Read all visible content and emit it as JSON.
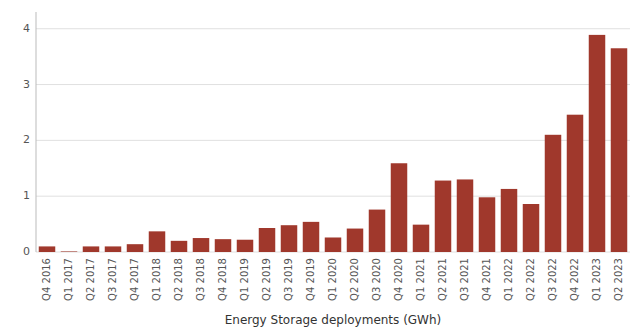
{
  "chart_data": {
    "type": "bar",
    "xlabel": "Energy Storage deployments (GWh)",
    "categories": [
      "Q4 2016",
      "Q1 2017",
      "Q2 2017",
      "Q3 2017",
      "Q4 2017",
      "Q1 2018",
      "Q2 2018",
      "Q3 2018",
      "Q4 2018",
      "Q1 2019",
      "Q2 2019",
      "Q3 2019",
      "Q4 2019",
      "Q1 2020",
      "Q2 2020",
      "Q3 2020",
      "Q4 2020",
      "Q1 2021",
      "Q2 2021",
      "Q3 2021",
      "Q4 2021",
      "Q1 2022",
      "Q2 2022",
      "Q3 2022",
      "Q4 2022",
      "Q1 2023",
      "Q2 2023"
    ],
    "values": [
      0.1,
      0.01,
      0.1,
      0.1,
      0.14,
      0.37,
      0.2,
      0.25,
      0.23,
      0.22,
      0.43,
      0.48,
      0.54,
      0.26,
      0.42,
      0.76,
      1.59,
      0.49,
      1.28,
      1.3,
      0.98,
      1.13,
      0.86,
      2.1,
      2.46,
      3.89,
      3.65
    ],
    "color": "#A0382C",
    "ylim": [
      0,
      4.3
    ],
    "yticks": [
      0,
      1,
      2,
      3,
      4
    ],
    "grid": true
  }
}
